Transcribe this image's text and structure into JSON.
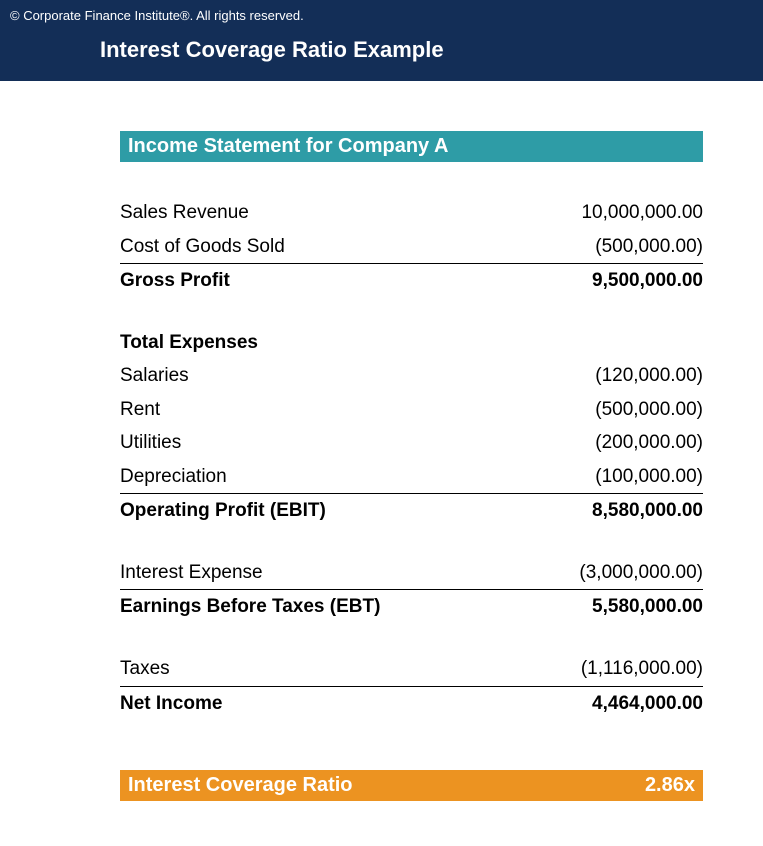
{
  "header": {
    "copyright": "© Corporate Finance Institute®. All rights reserved.",
    "title": "Interest Coverage Ratio Example"
  },
  "colors": {
    "header_bg": "#132e57",
    "section_teal": "#2e9ca6",
    "section_orange": "#ec9321",
    "text_white": "#ffffff",
    "text_black": "#000000",
    "border": "#000000"
  },
  "statement": {
    "heading": "Income Statement for Company A",
    "rows": {
      "sales_revenue": {
        "label": "Sales Revenue",
        "value": "10,000,000.00"
      },
      "cogs": {
        "label": "Cost of Goods Sold",
        "value": "(500,000.00)"
      },
      "gross_profit": {
        "label": "Gross Profit",
        "value": "9,500,000.00"
      },
      "total_expenses_header": {
        "label": "Total Expenses"
      },
      "salaries": {
        "label": "Salaries",
        "value": "(120,000.00)"
      },
      "rent": {
        "label": "Rent",
        "value": "(500,000.00)"
      },
      "utilities": {
        "label": "Utilities",
        "value": "(200,000.00)"
      },
      "depreciation": {
        "label": "Depreciation",
        "value": "(100,000.00)"
      },
      "operating_profit": {
        "label": "Operating Profit (EBIT)",
        "value": "8,580,000.00"
      },
      "interest_expense": {
        "label": "Interest Expense",
        "value": "(3,000,000.00)"
      },
      "ebt": {
        "label": "Earnings Before Taxes (EBT)",
        "value": "5,580,000.00"
      },
      "taxes": {
        "label": "Taxes",
        "value": "(1,116,000.00)"
      },
      "net_income": {
        "label": "Net Income",
        "value": "4,464,000.00"
      }
    }
  },
  "ratio": {
    "label": "Interest Coverage Ratio",
    "value": "2.86x"
  },
  "typography": {
    "title_fontsize": 22,
    "section_header_fontsize": 20,
    "row_fontsize": 19,
    "copyright_fontsize": 13
  }
}
